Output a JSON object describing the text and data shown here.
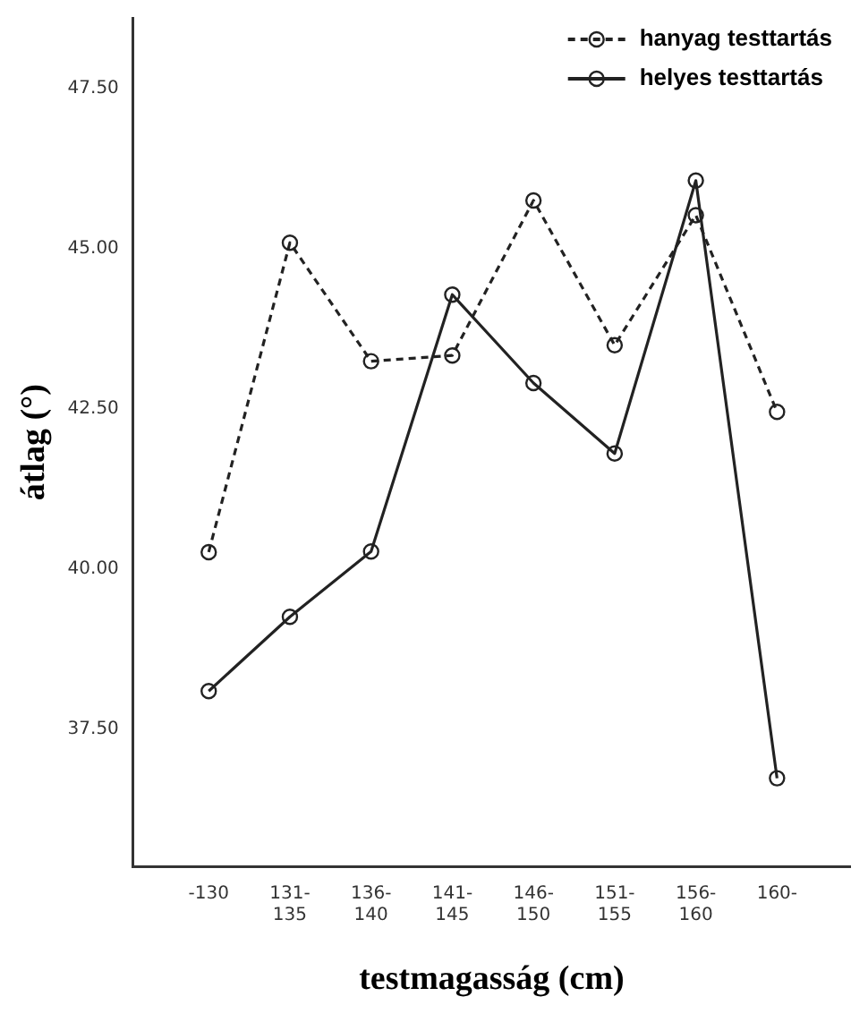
{
  "chart_data": {
    "type": "line",
    "xlabel": "testmagasság (cm)",
    "ylabel": "átlag (°)",
    "categories": [
      "-130",
      "131-135",
      "136-140",
      "141-145",
      "146-150",
      "151-155",
      "156-160",
      "160-"
    ],
    "series": [
      {
        "name": "hanyag testtartás",
        "color": "#222222",
        "line_style": "dashed",
        "values": [
          40.26,
          45.09,
          43.24,
          43.33,
          45.75,
          43.49,
          45.52,
          42.45
        ]
      },
      {
        "name": "helyes testtartás",
        "color": "#222222",
        "line_style": "solid",
        "values": [
          38.09,
          39.25,
          40.27,
          44.28,
          42.9,
          41.8,
          46.06,
          36.73
        ]
      }
    ],
    "ylim": [
      35.35,
      48.6
    ],
    "yticks": [
      {
        "value": 37.5,
        "label": "37.50"
      },
      {
        "value": 40,
        "label": "40.00"
      },
      {
        "value": 42.5,
        "label": "42.50"
      },
      {
        "value": 45,
        "label": "45.00"
      },
      {
        "value": 47.5,
        "label": "47.50"
      }
    ],
    "marker": "circle",
    "grid": false,
    "legend": "top right"
  }
}
